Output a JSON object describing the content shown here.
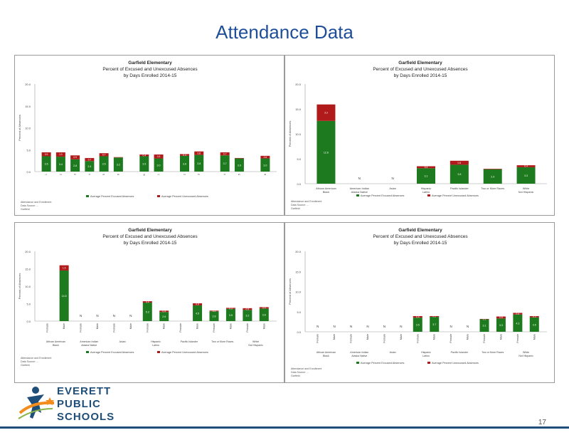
{
  "page": {
    "title": "Attendance Data",
    "page_number": "17",
    "logo_lines": [
      "EVERETT",
      "PUBLIC",
      "SCHOOLS"
    ]
  },
  "colors": {
    "excused": "#1e7a1e",
    "unexcused": "#b01a1a",
    "axis": "#333333"
  },
  "chart_data": [
    {
      "type": "bar",
      "stacked": true,
      "title": "Garfield Elementary",
      "subtitle": "Percent of Excused and Unexcused Absences",
      "subtitle2": "by Days Enrolled 2014-15",
      "ylabel": "Percent of Absences",
      "ylim": [
        0,
        20
      ],
      "yticks": [
        "0.0",
        "5.0",
        "10.0",
        "15.0",
        "20.0"
      ],
      "gap_after": [
        5,
        7,
        9,
        11
      ],
      "categories": [
        "1",
        "2",
        "3",
        "4",
        "5",
        "6",
        "K",
        "1",
        "2",
        "3",
        "4",
        "5",
        "6"
      ],
      "series": [
        {
          "name": "Average Percent Excused Absences",
          "values": [
            3.5,
            3.4,
            2.8,
            2.4,
            3.5,
            3.2,
            3.5,
            3.0,
            3.6,
            3.8,
            3.7,
            3.0,
            3.0
          ]
        },
        {
          "name": "Average Percent Unexcused Absences",
          "values": [
            0.9,
            1.0,
            0.9,
            0.7,
            0.7,
            0.1,
            0.4,
            0.9,
            0.4,
            0.8,
            0.7,
            0.1,
            0.6
          ]
        }
      ],
      "labels_excused": [
        "3.5",
        "3.4",
        "2.8",
        "2.4",
        "3.5",
        "3.2",
        "3.5",
        "3.0",
        "3.6",
        "3.8",
        "3.7",
        "3.0",
        "3.0"
      ],
      "labels_unexcused": [
        "0.9",
        "1.0",
        "0.9",
        "0.7",
        "0.7",
        "",
        "0.4",
        "0.9",
        "0.4",
        "0.8",
        "0.7",
        "",
        "0.6"
      ],
      "notes": [
        "Attendance and Enrollment",
        "Data Source: ...",
        "Garfield"
      ]
    },
    {
      "type": "bar",
      "stacked": true,
      "title": "Garfield Elementary",
      "subtitle": "Percent of Excused and Unexcused Absences",
      "subtitle2": "by Days Enrolled 2014-15",
      "ylabel": "Percent of Absences",
      "ylim": [
        0,
        20
      ],
      "yticks": [
        "0.0",
        "5.0",
        "10.0",
        "15.0",
        "20.0"
      ],
      "categories": [
        "African American/Black",
        "American Indian/Alaska Native",
        "Asian",
        "Hispanic/Latino",
        "Pacific Islander",
        "Two or More Races",
        "White/Not Hispanic"
      ],
      "series": [
        {
          "name": "Average Percent Excused Absences",
          "values": [
            12.6,
            0,
            0,
            3.1,
            3.8,
            2.9,
            3.3
          ]
        },
        {
          "name": "Average Percent Unexcused Absences",
          "values": [
            3.3,
            0,
            0,
            0.4,
            0.8,
            0.1,
            0.4
          ]
        }
      ],
      "labels_excused": [
        "12.6",
        "",
        "",
        "3.1",
        "3.8",
        "2.9",
        "3.3"
      ],
      "labels_unexcused": [
        "3.3",
        "",
        "",
        "0.4",
        "0.8",
        "",
        "0.4"
      ],
      "na_labels": [
        "",
        "N",
        "N",
        "",
        "",
        "",
        ""
      ],
      "notes": [
        "Attendance and Enrollment",
        "Data Source: ...",
        "Garfield"
      ]
    },
    {
      "type": "bar",
      "stacked": true,
      "title": "Garfield Elementary",
      "subtitle": "Percent of Excused and Unexcused Absences",
      "subtitle2": "by Days Enrolled 2014-15",
      "ylabel": "Percent of Absences",
      "ylim": [
        0,
        20
      ],
      "yticks": [
        "0.0",
        "5.0",
        "10.0",
        "15.0",
        "20.0"
      ],
      "categories": [
        "Female",
        "Male",
        "Female",
        "Male",
        "Female",
        "Male",
        "Female",
        "Male",
        "Female",
        "Male",
        "Female",
        "Male",
        "Female",
        "Male"
      ],
      "groups": [
        "African American/Black",
        "American Indian/Alaska Native",
        "Asian",
        "Hispanic/Latino",
        "Pacific Islander",
        "Two or More Races",
        "White/Not Hispanic"
      ],
      "series": [
        {
          "name": "Average Percent Excused Absences",
          "values": [
            0,
            14.5,
            0,
            0,
            0,
            0,
            5.3,
            2.6,
            0,
            4.5,
            2.8,
            3.5,
            3.2,
            3.6
          ]
        },
        {
          "name": "Average Percent Unexcused Absences",
          "values": [
            0,
            1.5,
            0,
            0,
            0,
            0,
            0.4,
            0.4,
            0,
            0.6,
            0.2,
            0.3,
            0.5,
            0.4
          ]
        }
      ],
      "labels_excused": [
        "",
        "14.5",
        "",
        "",
        "",
        "",
        "5.3",
        "2.6",
        "",
        "4.5",
        "2.8",
        "3.5",
        "3.2",
        "3.6"
      ],
      "labels_unexcused": [
        "",
        "1.5",
        "",
        "",
        "",
        "",
        "0.4",
        "0.4",
        "",
        "0.6",
        "0.2",
        "0.3",
        "0.5",
        "0.4"
      ],
      "na_labels": [
        "",
        "",
        "N",
        "N",
        "N",
        "N",
        "",
        "",
        "",
        "",
        "",
        "",
        "",
        ""
      ],
      "notes": [
        "Attendance and Enrollment",
        "Data Source: ...",
        "Garfield"
      ]
    },
    {
      "type": "bar",
      "stacked": true,
      "title": "Garfield Elementary",
      "subtitle": "Percent of Excused and Unexcused Absences",
      "subtitle2": "by Days Enrolled 2014-15",
      "ylabel": "Percent of Absences",
      "ylim": [
        0,
        20
      ],
      "yticks": [
        "0.0",
        "5.0",
        "10.0",
        "15.0",
        "20.0"
      ],
      "categories": [
        "Female",
        "Male",
        "Female",
        "Male",
        "Female",
        "Male",
        "Female",
        "Male",
        "Female",
        "Male",
        "Female",
        "Male",
        "Female",
        "Male"
      ],
      "groups": [
        "African American/Black",
        "American Indian/Alaska Native",
        "Asian",
        "Hispanic/Latino",
        "Pacific Islander",
        "Two or More Races",
        "White/Not Hispanic"
      ],
      "series": [
        {
          "name": "Average Percent Excused Absences",
          "values": [
            0,
            0,
            0,
            0,
            0,
            0,
            3.5,
            3.7,
            0,
            0,
            3.1,
            3.3,
            4.3,
            3.6
          ]
        },
        {
          "name": "Average Percent Unexcused Absences",
          "values": [
            0,
            0,
            0,
            0,
            0,
            0,
            0.4,
            0.2,
            0,
            0,
            0.1,
            0.5,
            0.4,
            0.3
          ]
        }
      ],
      "labels_excused": [
        "",
        "",
        "",
        "",
        "",
        "",
        "3.5",
        "3.7",
        "",
        "",
        "3.1",
        "3.3",
        "4.3",
        "3.6"
      ],
      "labels_unexcused": [
        "",
        "",
        "",
        "",
        "",
        "",
        "0.4",
        "0.2",
        "",
        "",
        "0.1",
        "0.5",
        "0.4",
        "0.3"
      ],
      "na_labels": [
        "N",
        "N",
        "N",
        "N",
        "N",
        "N",
        "",
        "",
        "N",
        "N",
        "",
        "",
        "",
        ""
      ],
      "notes": [
        "Attendance and Enrollment",
        "Data Source: ...",
        "Garfield"
      ]
    }
  ]
}
